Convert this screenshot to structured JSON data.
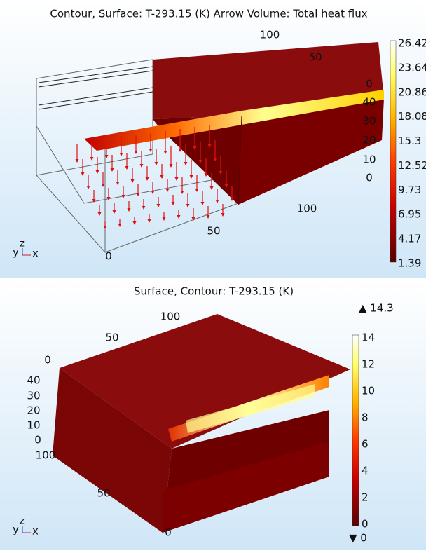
{
  "panels": [
    {
      "title": "Contour, Surface: T-293.15 (K)  Arrow Volume: Total heat flux",
      "colorbar_ticks": [
        "26.42",
        "23.64",
        "20.86",
        "18.08",
        "15.3",
        "12.52",
        "9.73",
        "6.95",
        "4.17",
        "1.39"
      ],
      "axis_labels": [
        "100",
        "50",
        "0",
        "40",
        "30",
        "20",
        "10",
        "0",
        "100",
        "50",
        "0"
      ],
      "triad": {
        "y": "y",
        "z": "z",
        "x": "x"
      }
    },
    {
      "title": "Surface, Contour: T-293.15 (K)",
      "max_label": "▲ 14.3",
      "min_label": "▼ 0",
      "colorbar_ticks": [
        "14",
        "12",
        "10",
        "8",
        "6",
        "4",
        "2",
        "0"
      ],
      "axis_labels": [
        "100",
        "50",
        "0",
        "40",
        "30",
        "20",
        "10",
        "0",
        "100",
        "50",
        "0"
      ],
      "triad": {
        "y": "y",
        "z": "z",
        "x": "x"
      }
    }
  ]
}
